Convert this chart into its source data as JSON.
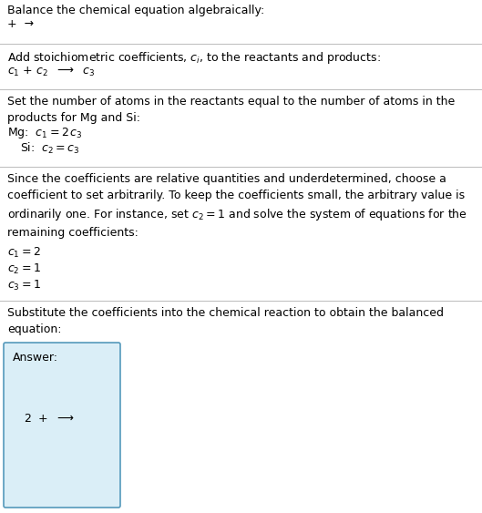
{
  "title": "Balance the chemical equation algebraically:",
  "section1_line1": "+  →",
  "section2_header": "Add stoichiometric coefficients, $c_i$, to the reactants and products:",
  "section3_header": "Set the number of atoms in the reactants equal to the number of atoms in the\nproducts for Mg and Si:",
  "section4_header": "Since the coefficients are relative quantities and underdetermined, choose a\ncoefficient to set arbitrarily. To keep the coefficients small, the arbitrary value is\nordinarily one. For instance, set $c_2 = 1$ and solve the system of equations for the\nremaining coefficients:",
  "section5_header": "Substitute the coefficients into the chemical reaction to obtain the balanced\nequation:",
  "bg_color": "#ffffff",
  "box_color": "#daeef7",
  "box_border": "#5599bb",
  "text_color": "#000000",
  "separator_color": "#bbbbbb"
}
